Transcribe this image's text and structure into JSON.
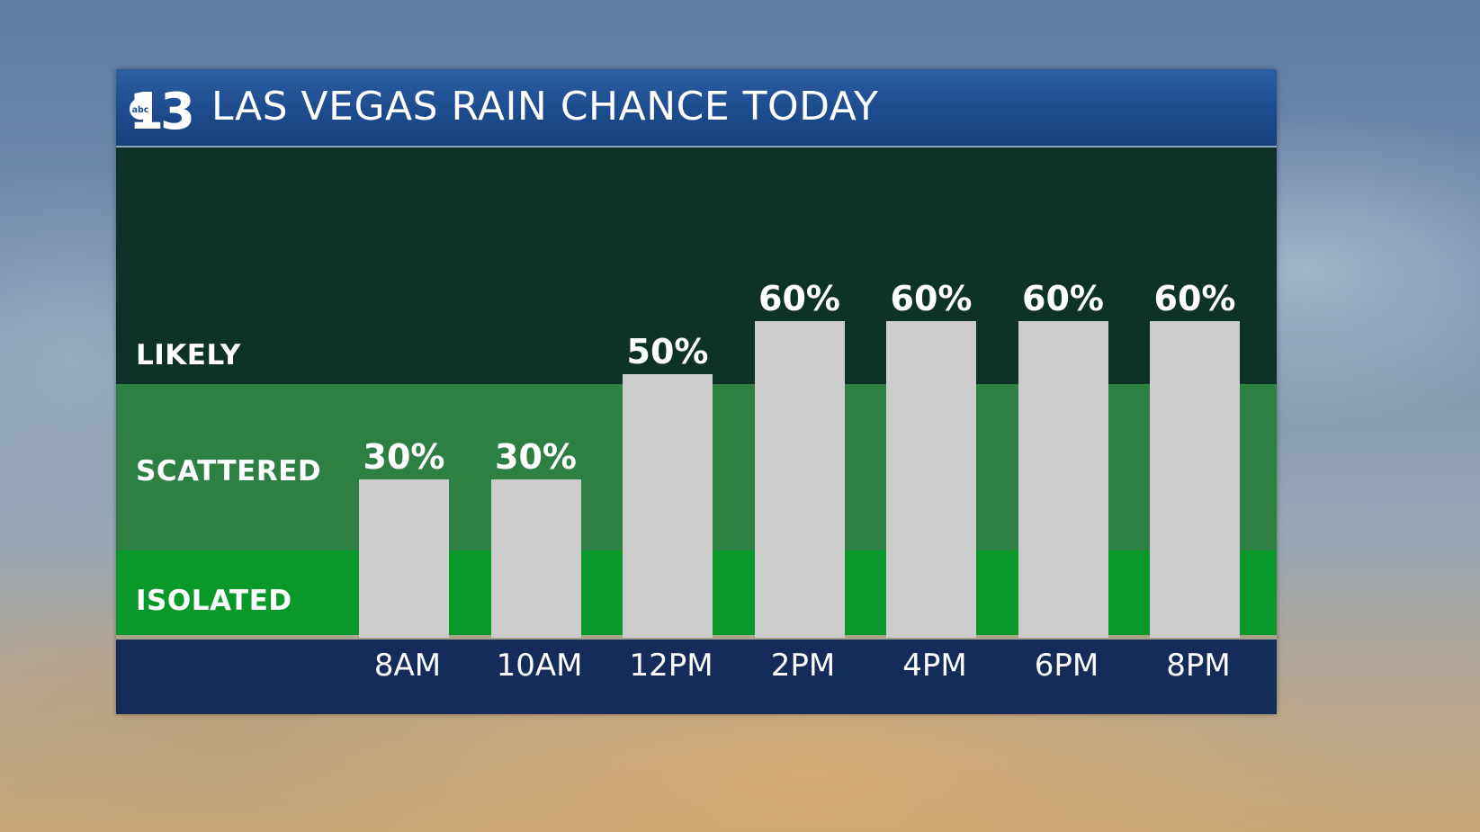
{
  "header": {
    "logo_text": "abc13",
    "title": "LAS VEGAS RAIN CHANCE TODAY"
  },
  "bands": {
    "likely": "LIKELY",
    "scattered": "SCATTERED",
    "isolated": "ISOLATED"
  },
  "colors": {
    "header": "#1d4b8e",
    "likely_band": "#0d3329",
    "scattered_band": "#2d7f42",
    "isolated_band": "#08992a",
    "bars": "#cbcccb",
    "footer": "#132c5a"
  },
  "chart_data": {
    "type": "bar",
    "title": "LAS VEGAS RAIN CHANCE TODAY",
    "categories": [
      "8AM",
      "10AM",
      "12PM",
      "2PM",
      "4PM",
      "6PM",
      "8PM"
    ],
    "values": [
      30,
      30,
      50,
      60,
      60,
      60,
      60
    ],
    "value_labels": [
      "30%",
      "30%",
      "50%",
      "60%",
      "60%",
      "60%",
      "60%"
    ],
    "unit": "%",
    "ylim": [
      0,
      100
    ],
    "bands": [
      {
        "name": "ISOLATED",
        "range": [
          0,
          20
        ]
      },
      {
        "name": "SCATTERED",
        "range": [
          20,
          60
        ]
      },
      {
        "name": "LIKELY",
        "range": [
          60,
          100
        ]
      }
    ],
    "grid": false,
    "legend": "none"
  }
}
